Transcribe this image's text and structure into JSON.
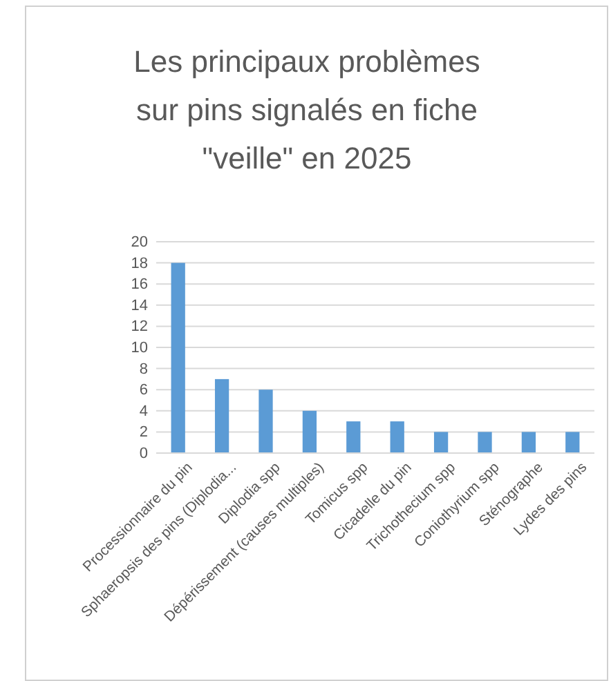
{
  "chart_data": {
    "type": "bar",
    "title": "Les principaux problèmes sur pins signalés en fiche \"veille\" en 2025",
    "categories": [
      "Processionnaire du pin",
      "Sphaeropsis des pins (Diplodia...",
      "Diplodia spp",
      "Dépérissement (causes multiples)",
      "Tomicus spp",
      "Cicadelle du pin",
      "Trichothecium spp",
      "Coniothyrium spp",
      "Sténographe",
      "Lydes des pins"
    ],
    "values": [
      18,
      7,
      6,
      4,
      3,
      3,
      2,
      2,
      2,
      2
    ],
    "color": "#5b9bd5",
    "ylim": [
      0,
      20
    ],
    "yticks": [
      0,
      2,
      4,
      6,
      8,
      10,
      12,
      14,
      16,
      18,
      20
    ],
    "grid": "y"
  }
}
